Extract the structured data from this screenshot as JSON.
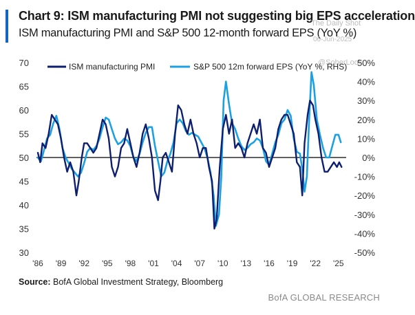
{
  "header": {
    "title": "Chart 9: ISM manufacturing PMI not suggesting big EPS acceleration",
    "subtitle": "ISM manufacturing PMI and S&P 500 12-month forward EPS (YoY %)",
    "accent_color": "#1565c0"
  },
  "watermark": {
    "line1": "The Daily Shot",
    "line2": "06-Jun-2025",
    "line3": "@SoberLook"
  },
  "footer": {
    "source_label": "Source:",
    "source_text": " BofA Global Investment Strategy, Bloomberg",
    "brand": "BofA GLOBAL RESEARCH"
  },
  "chart_data": {
    "type": "line",
    "title": "ISM manufacturing PMI and S&P 500 12-month forward EPS (YoY %)",
    "legend_position": "top",
    "grid": false,
    "x_ticks": [
      "'86",
      "'89",
      "'92",
      "'95",
      "'98",
      "'01",
      "'04",
      "'07",
      "'10",
      "'13",
      "'16",
      "'19",
      "'22",
      "'25"
    ],
    "xlim": [
      1986,
      2026
    ],
    "y_left": {
      "ticks": [
        "70",
        "65",
        "60",
        "55",
        "50",
        "45",
        "40",
        "35",
        "30"
      ],
      "lim": [
        30,
        70
      ]
    },
    "y_right": {
      "ticks": [
        "50%",
        "40%",
        "30%",
        "20%",
        "10%",
        "0%",
        "-10%",
        "-20%",
        "-30%",
        "-40%",
        "-50%"
      ],
      "lim": [
        -50,
        50
      ]
    },
    "zero_line_color": "#000000",
    "series": [
      {
        "name": "ISM manufacturing PMI",
        "axis": "left",
        "color": "#0d1f6e",
        "x": [
          1986.0,
          1986.3,
          1986.6,
          1987.0,
          1987.4,
          1987.8,
          1988.2,
          1988.6,
          1989.0,
          1989.4,
          1989.8,
          1990.2,
          1990.6,
          1991.0,
          1991.3,
          1991.7,
          1992.0,
          1992.4,
          1992.8,
          1993.2,
          1993.6,
          1994.0,
          1994.4,
          1994.8,
          1995.2,
          1995.6,
          1996.0,
          1996.4,
          1996.8,
          1997.2,
          1997.6,
          1998.0,
          1998.4,
          1998.8,
          1999.2,
          1999.6,
          2000.0,
          2000.4,
          2000.8,
          2001.2,
          2001.6,
          2001.9,
          2002.2,
          2002.6,
          2003.0,
          2003.4,
          2003.8,
          2004.2,
          2004.6,
          2005.0,
          2005.4,
          2005.8,
          2006.2,
          2006.6,
          2007.0,
          2007.4,
          2007.8,
          2008.2,
          2008.6,
          2008.9,
          2009.2,
          2009.6,
          2010.0,
          2010.4,
          2010.8,
          2011.2,
          2011.6,
          2012.0,
          2012.4,
          2012.8,
          2013.2,
          2013.6,
          2014.0,
          2014.4,
          2014.8,
          2015.2,
          2015.6,
          2016.0,
          2016.4,
          2016.8,
          2017.2,
          2017.6,
          2018.0,
          2018.4,
          2018.8,
          2019.2,
          2019.6,
          2020.0,
          2020.3,
          2020.6,
          2021.0,
          2021.3,
          2021.7,
          2022.0,
          2022.4,
          2022.8,
          2023.2,
          2023.6,
          2024.0,
          2024.4,
          2024.8,
          2025.1,
          2025.4
        ],
        "y": [
          51,
          49,
          53,
          52,
          55,
          59,
          58,
          57,
          54,
          50,
          47,
          49,
          47,
          42,
          45,
          50,
          53,
          53,
          52,
          51,
          52,
          55,
          58,
          57,
          54,
          48,
          46,
          48,
          52,
          53,
          56,
          53,
          50,
          48,
          51,
          55,
          57,
          54,
          50,
          43,
          41,
          45,
          50,
          51,
          49,
          47,
          55,
          61,
          60,
          57,
          55,
          58,
          55,
          53,
          50,
          52,
          52,
          48,
          45,
          35,
          37,
          48,
          56,
          59,
          55,
          58,
          52,
          53,
          52,
          50,
          53,
          55,
          57,
          55,
          58,
          52,
          51,
          48,
          50,
          52,
          56,
          58,
          59,
          59,
          57,
          55,
          49,
          48,
          42,
          53,
          59,
          62,
          61,
          58,
          55,
          50,
          47,
          47,
          48,
          49,
          48,
          49,
          48
        ]
      },
      {
        "name": "S&P 500 12m forward EPS (YoY %, RHS)",
        "axis": "right",
        "color": "#1ba1e2",
        "x": [
          1986.0,
          1986.4,
          1986.8,
          1987.2,
          1987.6,
          1988.0,
          1988.4,
          1988.8,
          1989.2,
          1989.6,
          1990.0,
          1990.4,
          1990.8,
          1991.2,
          1991.6,
          1992.0,
          1992.4,
          1992.8,
          1993.2,
          1993.6,
          1994.0,
          1994.4,
          1994.8,
          1995.2,
          1995.6,
          1996.0,
          1996.4,
          1996.8,
          1997.2,
          1997.6,
          1998.0,
          1998.4,
          1998.8,
          1999.2,
          1999.6,
          2000.0,
          2000.4,
          2000.8,
          2001.2,
          2001.6,
          2002.0,
          2002.4,
          2002.8,
          2003.2,
          2003.6,
          2004.0,
          2004.4,
          2004.8,
          2005.2,
          2005.6,
          2006.0,
          2006.4,
          2006.8,
          2007.2,
          2007.6,
          2008.0,
          2008.4,
          2008.8,
          2009.1,
          2009.5,
          2009.8,
          2010.1,
          2010.4,
          2010.8,
          2011.2,
          2011.6,
          2012.0,
          2012.4,
          2012.8,
          2013.2,
          2013.6,
          2014.0,
          2014.4,
          2014.8,
          2015.2,
          2015.6,
          2016.0,
          2016.4,
          2016.8,
          2017.2,
          2017.6,
          2018.0,
          2018.4,
          2018.8,
          2019.2,
          2019.6,
          2020.0,
          2020.3,
          2020.6,
          2020.9,
          2021.2,
          2021.5,
          2021.8,
          2022.2,
          2022.6,
          2023.0,
          2023.4,
          2023.8,
          2024.2,
          2024.6,
          2025.0,
          2025.3
        ],
        "y": [
          0,
          -2,
          4,
          10,
          12,
          18,
          22,
          15,
          5,
          0,
          -3,
          -6,
          -8,
          -10,
          -8,
          -3,
          3,
          5,
          4,
          6,
          10,
          16,
          21,
          20,
          15,
          10,
          7,
          8,
          10,
          9,
          6,
          0,
          -2,
          2,
          8,
          13,
          16,
          16,
          6,
          -2,
          -10,
          -8,
          -2,
          2,
          8,
          18,
          20,
          18,
          14,
          12,
          13,
          12,
          11,
          8,
          5,
          0,
          -8,
          -20,
          -36,
          -30,
          -10,
          30,
          40,
          28,
          18,
          15,
          10,
          6,
          4,
          5,
          7,
          8,
          10,
          9,
          5,
          -2,
          -4,
          2,
          8,
          12,
          18,
          20,
          25,
          22,
          10,
          3,
          2,
          -6,
          -18,
          -10,
          20,
          45,
          38,
          20,
          12,
          5,
          0,
          0,
          6,
          12,
          12,
          8
        ]
      }
    ]
  }
}
